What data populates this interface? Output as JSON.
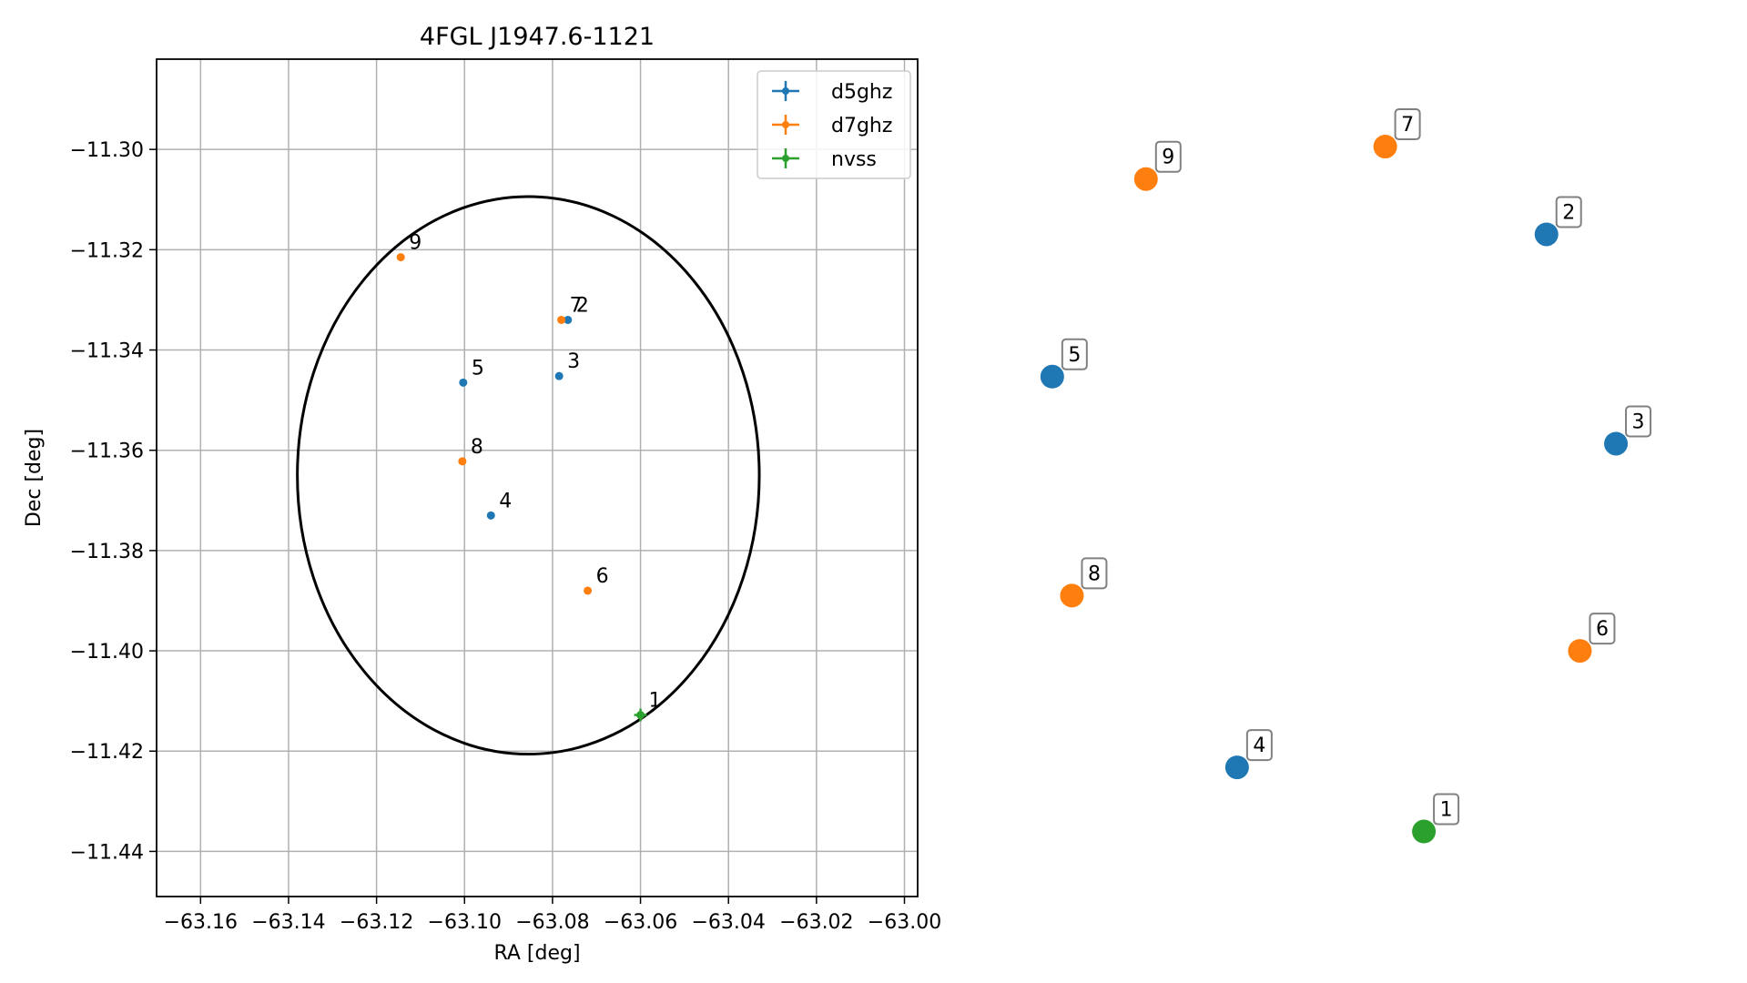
{
  "chart_data": [
    {
      "type": "scatter",
      "title": "4FGL J1947.6-1121",
      "xlabel": "RA [deg]",
      "ylabel": "Dec [deg]",
      "xlim": [
        -63.17,
        -62.997
      ],
      "ylim": [
        -11.449,
        -11.282
      ],
      "grid": true,
      "legend_position": "top-right",
      "x_ticks": [
        -63.16,
        -63.14,
        -63.12,
        -63.1,
        -63.08,
        -63.06,
        -63.04,
        -63.02,
        -63.0
      ],
      "x_tick_labels": [
        "−63.16",
        "−63.14",
        "−63.12",
        "−63.10",
        "−63.08",
        "−63.06",
        "−63.04",
        "−63.02",
        "−63.00"
      ],
      "y_ticks": [
        -11.3,
        -11.32,
        -11.34,
        -11.36,
        -11.38,
        -11.4,
        -11.42,
        -11.44
      ],
      "y_tick_labels": [
        "−11.30",
        "−11.32",
        "−11.34",
        "−11.36",
        "−11.38",
        "−11.40",
        "−11.42",
        "−11.44"
      ],
      "ellipse": {
        "center": [
          -63.0855,
          -11.365
        ],
        "semi_axis_ra": 0.0525,
        "semi_axis_dec": 0.0556,
        "color": "#000000"
      },
      "series": [
        {
          "name": "d5ghz",
          "color": "#1f77b4",
          "points": [
            {
              "label": "2",
              "ra": -63.0765,
              "dec": -11.334
            },
            {
              "label": "3",
              "ra": -63.0785,
              "dec": -11.3452
            },
            {
              "label": "4",
              "ra": -63.094,
              "dec": -11.373
            },
            {
              "label": "5",
              "ra": -63.1003,
              "dec": -11.3465
            }
          ]
        },
        {
          "name": "d7ghz",
          "color": "#ff7f0e",
          "points": [
            {
              "label": "6",
              "ra": -63.072,
              "dec": -11.388
            },
            {
              "label": "7",
              "ra": -63.078,
              "dec": -11.334
            },
            {
              "label": "8",
              "ra": -63.1005,
              "dec": -11.3622
            },
            {
              "label": "9",
              "ra": -63.1145,
              "dec": -11.3215
            }
          ]
        },
        {
          "name": "nvss",
          "color": "#2ca02c",
          "points": [
            {
              "label": "1",
              "ra": -63.06,
              "dec": -11.4128
            }
          ]
        }
      ]
    },
    {
      "type": "scatter",
      "title": "",
      "axes_visible": false,
      "points": [
        {
          "label": "1",
          "series": "nvss",
          "color": "#2ca02c",
          "x": 0.589,
          "y": 0.045
        },
        {
          "label": "2",
          "series": "d5ghz",
          "color": "#1f77b4",
          "x": 0.776,
          "y": 0.855
        },
        {
          "label": "3",
          "series": "d5ghz",
          "color": "#1f77b4",
          "x": 0.882,
          "y": 0.571
        },
        {
          "label": "4",
          "series": "d5ghz",
          "color": "#1f77b4",
          "x": 0.304,
          "y": 0.132
        },
        {
          "label": "5",
          "series": "d5ghz",
          "color": "#1f77b4",
          "x": 0.022,
          "y": 0.662
        },
        {
          "label": "6",
          "series": "d7ghz",
          "color": "#ff7f0e",
          "x": 0.827,
          "y": 0.29
        },
        {
          "label": "7",
          "series": "d7ghz",
          "color": "#ff7f0e",
          "x": 0.53,
          "y": 0.974
        },
        {
          "label": "8",
          "series": "d7ghz",
          "color": "#ff7f0e",
          "x": 0.052,
          "y": 0.365
        },
        {
          "label": "9",
          "series": "d7ghz",
          "color": "#ff7f0e",
          "x": 0.165,
          "y": 0.93
        }
      ]
    }
  ]
}
